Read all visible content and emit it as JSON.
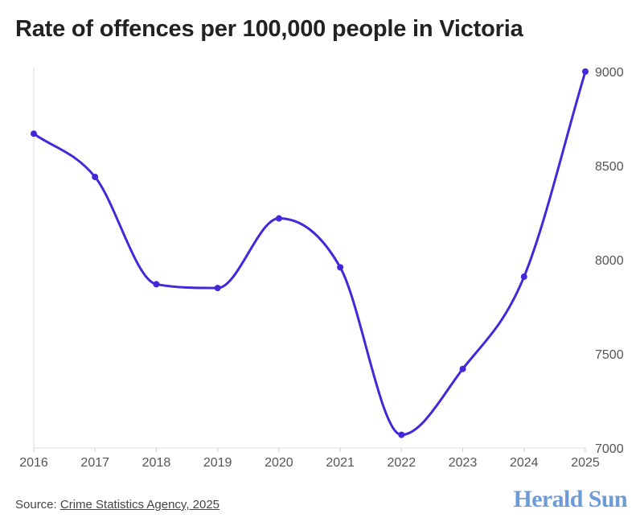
{
  "chart_data": {
    "type": "line",
    "title": "Rate of offences per 100,000 people in Victoria",
    "xlabel": "",
    "ylabel": "",
    "x": [
      "2016",
      "2017",
      "2018",
      "2019",
      "2020",
      "2021",
      "2022",
      "2023",
      "2024",
      "2025"
    ],
    "series": [
      {
        "values": [
          8670,
          8440,
          7870,
          7850,
          8220,
          7960,
          7070,
          7420,
          7910,
          9000
        ]
      }
    ],
    "ylim": [
      7000,
      9000
    ],
    "yticks": [
      7000,
      7500,
      8000,
      8500,
      9000
    ],
    "y_axis_side": "right",
    "grid": false,
    "legend": "none",
    "line_color": "#4427d9"
  },
  "source": {
    "prefix": "Source: ",
    "link_text": "Crime Statistics Agency, 2025"
  },
  "brand": {
    "name": "Herald Sun"
  }
}
